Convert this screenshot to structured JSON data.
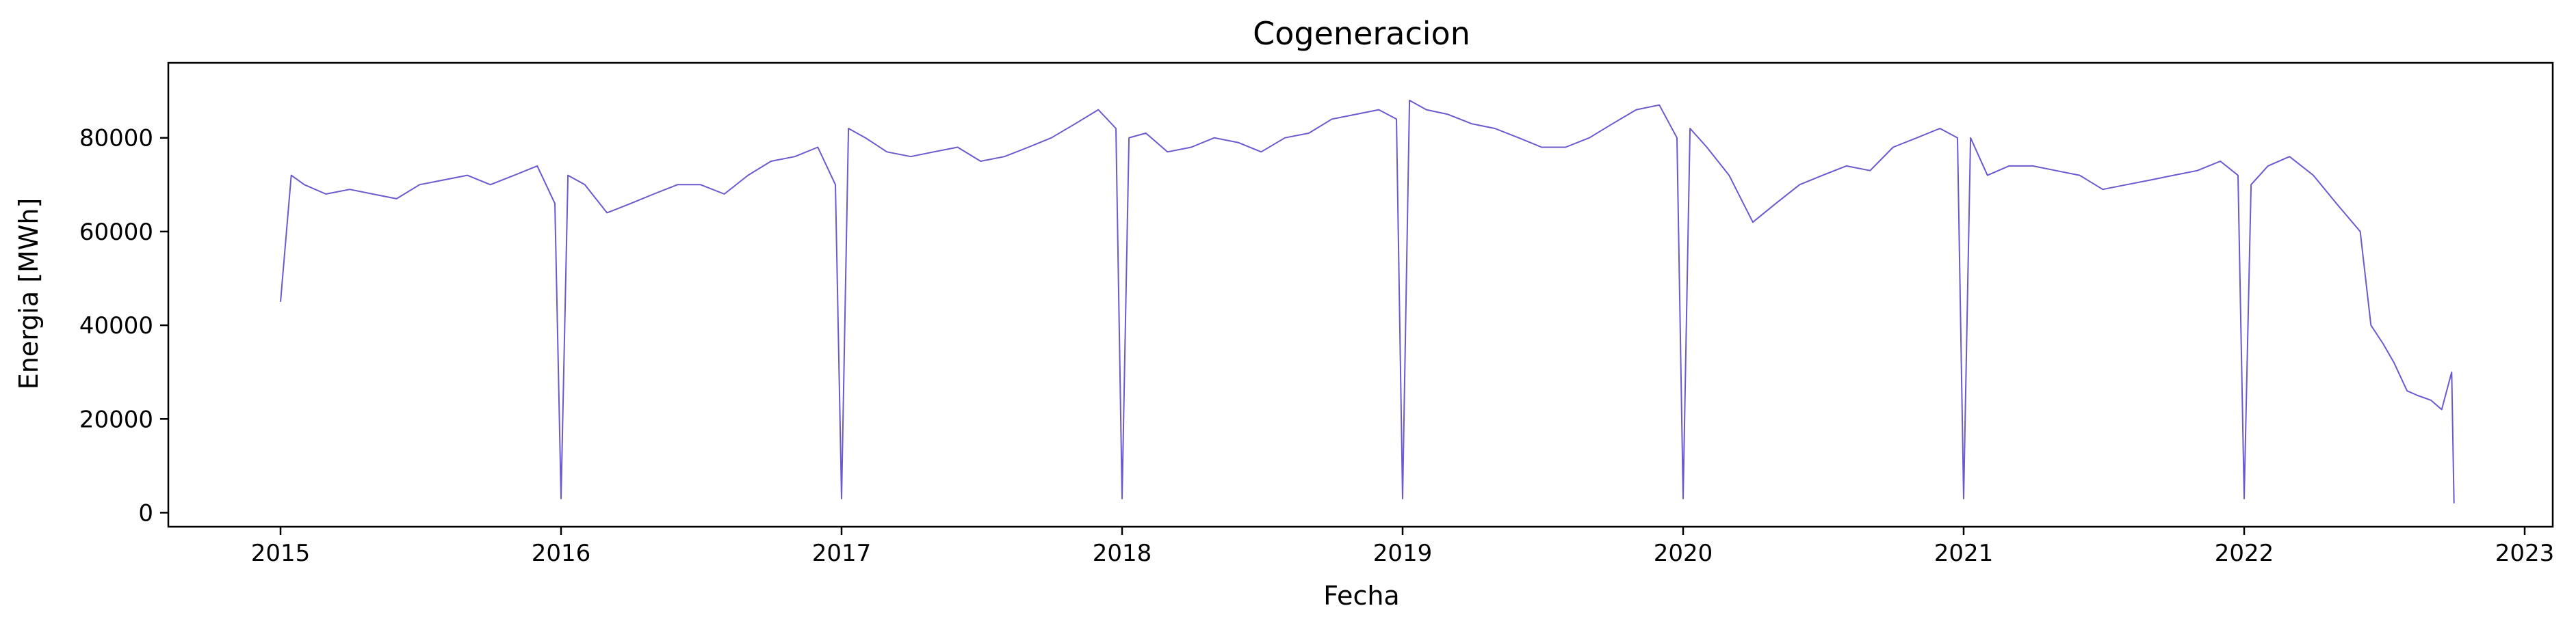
{
  "chart_data": {
    "type": "line",
    "title": "Cogeneracion",
    "xlabel": "Fecha",
    "ylabel": "Energia [MWh]",
    "xlim": [
      2014.6,
      2023.1
    ],
    "ylim": [
      -3000,
      96000
    ],
    "x_ticks": [
      2015,
      2016,
      2017,
      2018,
      2019,
      2020,
      2021,
      2022,
      2023
    ],
    "x_tick_labels": [
      "2015",
      "2016",
      "2017",
      "2018",
      "2019",
      "2020",
      "2021",
      "2022",
      "2023"
    ],
    "y_ticks": [
      0,
      20000,
      40000,
      60000,
      80000
    ],
    "y_tick_labels": [
      "0",
      "20000",
      "40000",
      "60000",
      "80000"
    ],
    "grid": false,
    "series": [
      {
        "color": "#6a5acd",
        "x": [
          "2015-01-01",
          "2015-01-15",
          "2015-02-01",
          "2015-03-01",
          "2015-04-01",
          "2015-05-01",
          "2015-06-01",
          "2015-07-01",
          "2015-08-01",
          "2015-09-01",
          "2015-10-01",
          "2015-11-01",
          "2015-12-01",
          "2015-12-24",
          "2016-01-01",
          "2016-01-10",
          "2016-02-01",
          "2016-03-01",
          "2016-04-01",
          "2016-05-01",
          "2016-06-01",
          "2016-07-01",
          "2016-08-01",
          "2016-09-01",
          "2016-10-01",
          "2016-11-01",
          "2016-12-01",
          "2016-12-24",
          "2017-01-01",
          "2017-01-10",
          "2017-02-01",
          "2017-03-01",
          "2017-04-01",
          "2017-05-01",
          "2017-06-01",
          "2017-07-01",
          "2017-08-01",
          "2017-09-01",
          "2017-10-01",
          "2017-11-01",
          "2017-12-01",
          "2017-12-24",
          "2018-01-01",
          "2018-01-10",
          "2018-02-01",
          "2018-03-01",
          "2018-04-01",
          "2018-05-01",
          "2018-06-01",
          "2018-07-01",
          "2018-08-01",
          "2018-09-01",
          "2018-10-01",
          "2018-11-01",
          "2018-12-01",
          "2018-12-24",
          "2019-01-01",
          "2019-01-10",
          "2019-02-01",
          "2019-03-01",
          "2019-04-01",
          "2019-05-01",
          "2019-06-01",
          "2019-07-01",
          "2019-08-01",
          "2019-09-01",
          "2019-10-01",
          "2019-11-01",
          "2019-12-01",
          "2019-12-24",
          "2020-01-01",
          "2020-01-10",
          "2020-02-01",
          "2020-03-01",
          "2020-04-01",
          "2020-05-01",
          "2020-06-01",
          "2020-07-01",
          "2020-08-01",
          "2020-09-01",
          "2020-10-01",
          "2020-11-01",
          "2020-12-01",
          "2020-12-24",
          "2021-01-01",
          "2021-01-10",
          "2021-02-01",
          "2021-03-01",
          "2021-04-01",
          "2021-05-01",
          "2021-06-01",
          "2021-07-01",
          "2021-08-01",
          "2021-09-01",
          "2021-10-01",
          "2021-11-01",
          "2021-12-01",
          "2021-12-24",
          "2022-01-01",
          "2022-01-10",
          "2022-02-01",
          "2022-03-01",
          "2022-04-01",
          "2022-05-01",
          "2022-06-01",
          "2022-06-15",
          "2022-07-01",
          "2022-07-15",
          "2022-08-01",
          "2022-08-15",
          "2022-09-01",
          "2022-09-15",
          "2022-09-28",
          "2022-10-01"
        ],
        "y": [
          45000,
          72000,
          70000,
          68000,
          69000,
          68000,
          67000,
          70000,
          71000,
          72000,
          70000,
          72000,
          74000,
          66000,
          3000,
          72000,
          70000,
          64000,
          66000,
          68000,
          70000,
          70000,
          68000,
          72000,
          75000,
          76000,
          78000,
          70000,
          3000,
          82000,
          80000,
          77000,
          76000,
          77000,
          78000,
          75000,
          76000,
          78000,
          80000,
          83000,
          86000,
          82000,
          3000,
          80000,
          81000,
          77000,
          78000,
          80000,
          79000,
          77000,
          80000,
          81000,
          84000,
          85000,
          86000,
          84000,
          3000,
          88000,
          86000,
          85000,
          83000,
          82000,
          80000,
          78000,
          78000,
          80000,
          83000,
          86000,
          87000,
          80000,
          3000,
          82000,
          78000,
          72000,
          62000,
          66000,
          70000,
          72000,
          74000,
          73000,
          78000,
          80000,
          82000,
          80000,
          3000,
          80000,
          72000,
          74000,
          74000,
          73000,
          72000,
          69000,
          70000,
          71000,
          72000,
          73000,
          75000,
          72000,
          3000,
          70000,
          74000,
          76000,
          72000,
          66000,
          60000,
          40000,
          36000,
          32000,
          26000,
          25000,
          24000,
          22000,
          30000,
          2000
        ]
      }
    ]
  }
}
